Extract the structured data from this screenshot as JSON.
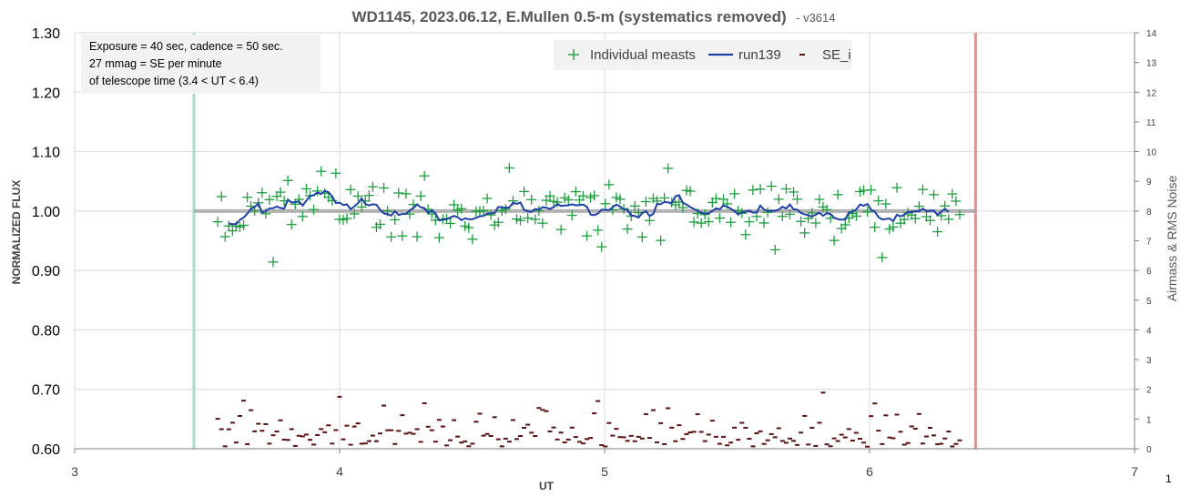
{
  "chart_data": {
    "type": "scatter",
    "title": "WD1145, 2023.06.12, E.Mullen 0.5-m (systematics removed)",
    "title_suffix": "- v3614",
    "xlabel": "UT",
    "ylabel": "NORMALIZED FLUX",
    "y2label": "Airmass & RMS Noise",
    "xlim": [
      3,
      7
    ],
    "ylim": [
      0.6,
      1.3
    ],
    "y2lim": [
      0,
      14
    ],
    "xticks": [
      "3",
      "4",
      "5",
      "6",
      "7"
    ],
    "yticks": [
      "0.60",
      "0.70",
      "0.80",
      "0.90",
      "1.00",
      "1.10",
      "1.20",
      "1.30"
    ],
    "y2ticks": [
      "0",
      "1",
      "2",
      "3",
      "4",
      "5",
      "6",
      "7",
      "8",
      "9",
      "10",
      "11",
      "12",
      "13",
      "14"
    ],
    "grid": true,
    "legend_position": "top-center",
    "corner_label": "1",
    "annotation": [
      "Exposure = 40 sec, cadence = 50 sec.",
      "27 mmag = SE per minute",
      "of telescope time (3.4 < UT < 6.4)"
    ],
    "vertical_lines": [
      {
        "x": 3.45,
        "color": "#a9dcc3"
      },
      {
        "x": 6.4,
        "color": "#d99694"
      }
    ],
    "reference_line": {
      "y": 1.0,
      "x_range": [
        3.45,
        6.4
      ],
      "color": "#a6a6a6"
    },
    "colors": {
      "individual": "#1e9e3e",
      "run": "#1f3fa6",
      "se": "#5b0f0f"
    },
    "series": [
      {
        "name": "Individual measts",
        "marker": "+"
      },
      {
        "name": "run139",
        "marker": "line"
      },
      {
        "name": "SE_i",
        "marker": "dash",
        "axis": "y2"
      }
    ],
    "x_start": 3.54,
    "x_end": 6.34
  }
}
